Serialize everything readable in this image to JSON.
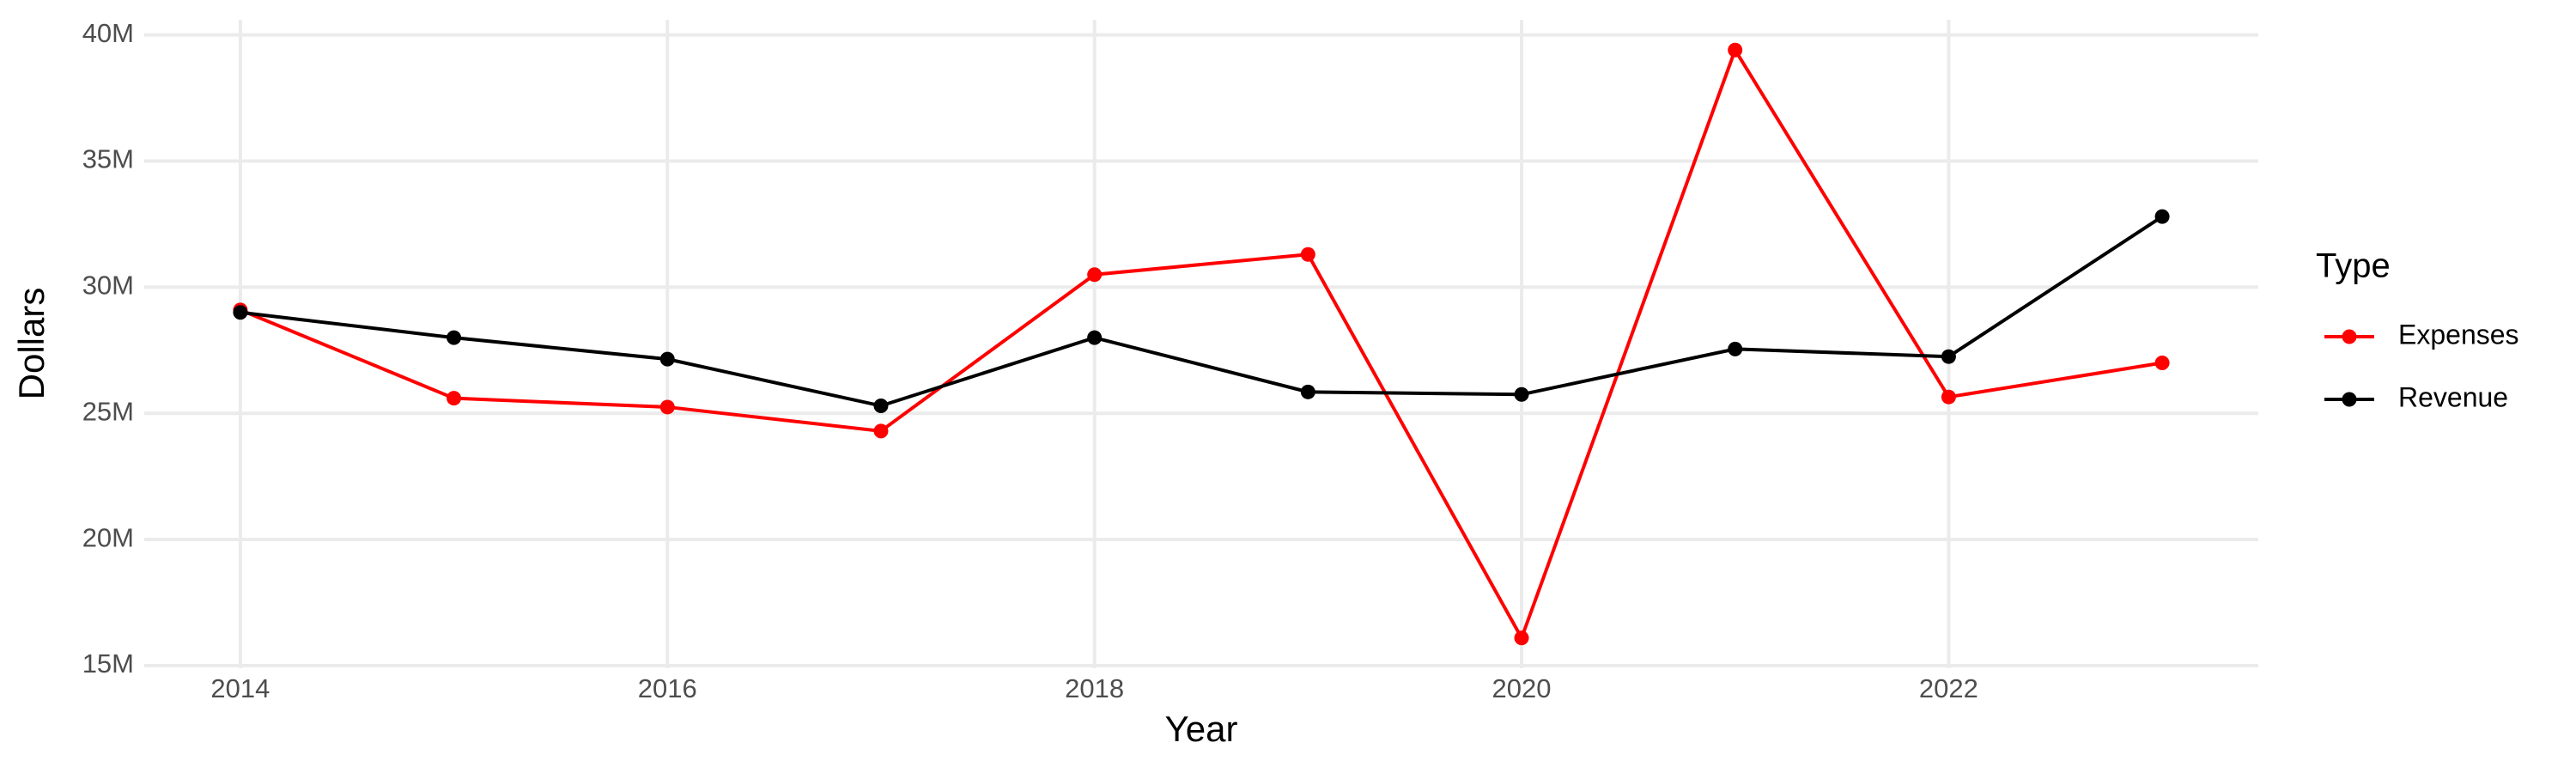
{
  "chart_data": {
    "type": "line",
    "x_label": "Year",
    "y_label": "Dollars",
    "legend_title": "Type",
    "x": [
      2014,
      2015,
      2016,
      2017,
      2018,
      2019,
      2020,
      2021,
      2022,
      2023
    ],
    "series": [
      {
        "name": "Expenses",
        "color": "#ff0000",
        "values": [
          29100000,
          25600000,
          25250000,
          24300000,
          30500000,
          31300000,
          16100000,
          39400000,
          25650000,
          27000000
        ]
      },
      {
        "name": "Revenue",
        "color": "#000000",
        "values": [
          29000000,
          28000000,
          27150000,
          25300000,
          28000000,
          25850000,
          25750000,
          27550000,
          27250000,
          32800000
        ]
      }
    ],
    "xlim": [
      2013.55,
      2023.45
    ],
    "xticks": [
      2014,
      2016,
      2018,
      2020,
      2022
    ],
    "ylim": [
      14900000,
      40600000
    ],
    "yticks": [
      {
        "value": 15000000,
        "label": "15M"
      },
      {
        "value": 20000000,
        "label": "20M"
      },
      {
        "value": 25000000,
        "label": "25M"
      },
      {
        "value": 30000000,
        "label": "30M"
      },
      {
        "value": 35000000,
        "label": "35M"
      },
      {
        "value": 40000000,
        "label": "40M"
      }
    ],
    "grid": true,
    "legend_position": "right"
  }
}
